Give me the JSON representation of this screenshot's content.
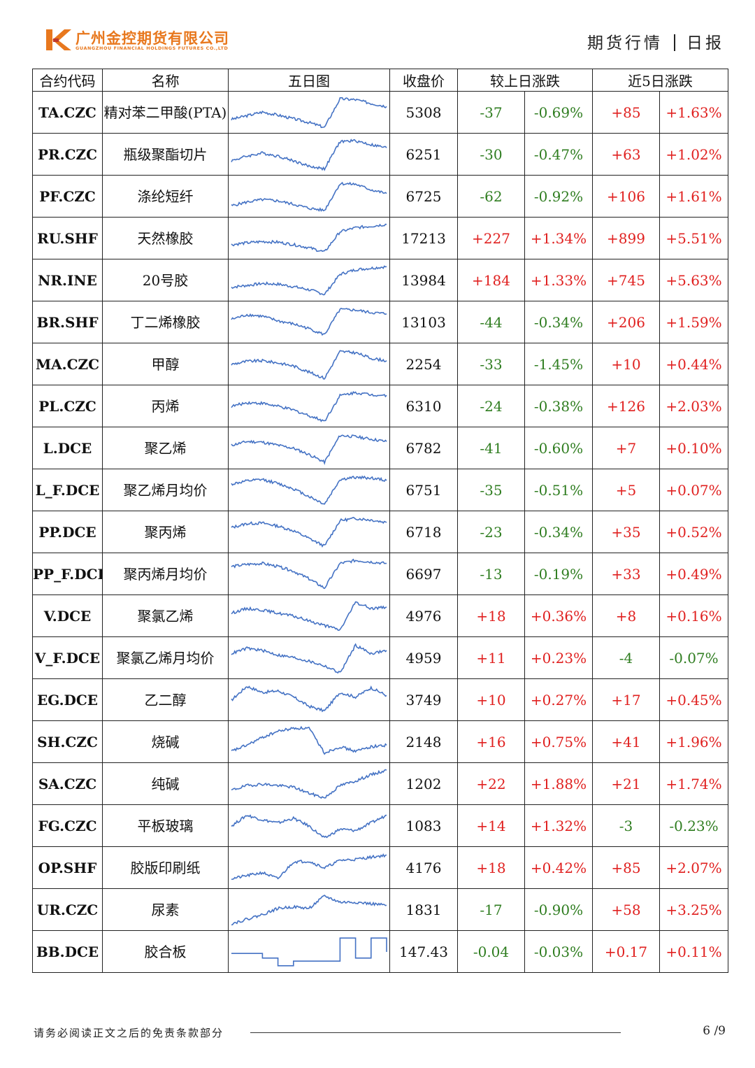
{
  "header": {
    "company_cn": "广州金控期货有限公司",
    "company_en": "GUANGZHOU FINANCIAL HOLDINGS FUTURES CO.,LTD",
    "logo_letter": "K",
    "report_left": "期货行情",
    "report_right": "日报",
    "brand_color": "#e8781e"
  },
  "table": {
    "headers": {
      "code": "合约代码",
      "name": "名称",
      "chart": "五日图",
      "close": "收盘价",
      "day_change": "较上日涨跌",
      "five_day_change": "近5日涨跌"
    },
    "rows": [
      {
        "code": "TA.CZC",
        "name": "精对苯二甲酸(PTA)",
        "close": "5308",
        "chg": "-37",
        "pct": "-0.69%",
        "chg5": "+85",
        "pct5": "+1.63%"
      },
      {
        "code": "PR.CZC",
        "name": "瓶级聚酯切片",
        "close": "6251",
        "chg": "-30",
        "pct": "-0.47%",
        "chg5": "+63",
        "pct5": "+1.02%"
      },
      {
        "code": "PF.CZC",
        "name": "涤纶短纤",
        "close": "6725",
        "chg": "-62",
        "pct": "-0.92%",
        "chg5": "+106",
        "pct5": "+1.61%"
      },
      {
        "code": "RU.SHF",
        "name": "天然橡胶",
        "close": "17213",
        "chg": "+227",
        "pct": "+1.34%",
        "chg5": "+899",
        "pct5": "+5.51%"
      },
      {
        "code": "NR.INE",
        "name": "20号胶",
        "close": "13984",
        "chg": "+184",
        "pct": "+1.33%",
        "chg5": "+745",
        "pct5": "+5.63%"
      },
      {
        "code": "BR.SHF",
        "name": "丁二烯橡胶",
        "close": "13103",
        "chg": "-44",
        "pct": "-0.34%",
        "chg5": "+206",
        "pct5": "+1.59%"
      },
      {
        "code": "MA.CZC",
        "name": "甲醇",
        "close": "2254",
        "chg": "-33",
        "pct": "-1.45%",
        "chg5": "+10",
        "pct5": "+0.44%"
      },
      {
        "code": "PL.CZC",
        "name": "丙烯",
        "close": "6310",
        "chg": "-24",
        "pct": "-0.38%",
        "chg5": "+126",
        "pct5": "+2.03%"
      },
      {
        "code": "L.DCE",
        "name": "聚乙烯",
        "close": "6782",
        "chg": "-41",
        "pct": "-0.60%",
        "chg5": "+7",
        "pct5": "+0.10%"
      },
      {
        "code": "L_F.DCE",
        "name": "聚乙烯月均价",
        "close": "6751",
        "chg": "-35",
        "pct": "-0.51%",
        "chg5": "+5",
        "pct5": "+0.07%"
      },
      {
        "code": "PP.DCE",
        "name": "聚丙烯",
        "close": "6718",
        "chg": "-23",
        "pct": "-0.34%",
        "chg5": "+35",
        "pct5": "+0.52%"
      },
      {
        "code": "PP_F.DCE",
        "name": "聚丙烯月均价",
        "close": "6697",
        "chg": "-13",
        "pct": "-0.19%",
        "chg5": "+33",
        "pct5": "+0.49%"
      },
      {
        "code": "V.DCE",
        "name": "聚氯乙烯",
        "close": "4976",
        "chg": "+18",
        "pct": "+0.36%",
        "chg5": "+8",
        "pct5": "+0.16%"
      },
      {
        "code": "V_F.DCE",
        "name": "聚氯乙烯月均价",
        "close": "4959",
        "chg": "+11",
        "pct": "+0.23%",
        "chg5": "-4",
        "pct5": "-0.07%"
      },
      {
        "code": "EG.DCE",
        "name": "乙二醇",
        "close": "3749",
        "chg": "+10",
        "pct": "+0.27%",
        "chg5": "+17",
        "pct5": "+0.45%"
      },
      {
        "code": "SH.CZC",
        "name": "烧碱",
        "close": "2148",
        "chg": "+16",
        "pct": "+0.75%",
        "chg5": "+41",
        "pct5": "+1.96%"
      },
      {
        "code": "SA.CZC",
        "name": "纯碱",
        "close": "1202",
        "chg": "+22",
        "pct": "+1.88%",
        "chg5": "+21",
        "pct5": "+1.74%"
      },
      {
        "code": "FG.CZC",
        "name": "平板玻璃",
        "close": "1083",
        "chg": "+14",
        "pct": "+1.32%",
        "chg5": "-3",
        "pct5": "-0.23%"
      },
      {
        "code": "OP.SHF",
        "name": "胶版印刷纸",
        "close": "4176",
        "chg": "+18",
        "pct": "+0.42%",
        "chg5": "+85",
        "pct5": "+2.07%"
      },
      {
        "code": "UR.CZC",
        "name": "尿素",
        "close": "1831",
        "chg": "-17",
        "pct": "-0.90%",
        "chg5": "+58",
        "pct5": "+3.25%"
      },
      {
        "code": "BB.DCE",
        "name": "胶合板",
        "close": "147.43",
        "chg": "-0.04",
        "pct": "-0.03%",
        "chg5": "+0.17",
        "pct5": "+0.11%"
      }
    ]
  },
  "sparklines": [
    [
      0.28,
      0.4,
      0.52,
      0.42,
      0.3,
      0.18,
      0.02,
      0.95,
      0.92,
      0.8,
      0.7
    ],
    [
      0.3,
      0.45,
      0.55,
      0.45,
      0.3,
      0.12,
      0.04,
      0.92,
      0.95,
      0.82,
      0.72
    ],
    [
      0.2,
      0.32,
      0.4,
      0.36,
      0.25,
      0.12,
      0.05,
      0.92,
      0.9,
      0.72,
      0.6
    ],
    [
      0.3,
      0.36,
      0.4,
      0.38,
      0.3,
      0.2,
      0.06,
      0.72,
      0.85,
      0.9,
      0.96
    ],
    [
      0.28,
      0.34,
      0.4,
      0.38,
      0.3,
      0.2,
      0.05,
      0.7,
      0.85,
      0.9,
      0.95
    ],
    [
      0.6,
      0.75,
      0.7,
      0.55,
      0.45,
      0.3,
      0.1,
      0.92,
      0.9,
      0.82,
      0.78
    ],
    [
      0.5,
      0.6,
      0.62,
      0.55,
      0.45,
      0.25,
      0.05,
      0.92,
      0.88,
      0.7,
      0.62
    ],
    [
      0.5,
      0.62,
      0.6,
      0.5,
      0.38,
      0.2,
      0.02,
      0.85,
      0.95,
      0.88,
      0.86
    ],
    [
      0.6,
      0.72,
      0.7,
      0.6,
      0.5,
      0.3,
      0.05,
      0.92,
      0.88,
      0.8,
      0.72
    ],
    [
      0.7,
      0.8,
      0.85,
      0.72,
      0.55,
      0.3,
      0.05,
      0.85,
      0.92,
      0.9,
      0.82
    ],
    [
      0.65,
      0.78,
      0.8,
      0.7,
      0.55,
      0.3,
      0.05,
      0.88,
      0.95,
      0.9,
      0.82
    ],
    [
      0.75,
      0.82,
      0.85,
      0.75,
      0.6,
      0.35,
      0.05,
      0.85,
      0.95,
      0.9,
      0.85
    ],
    [
      0.6,
      0.75,
      0.7,
      0.6,
      0.5,
      0.35,
      0.2,
      0.05,
      0.95,
      0.75,
      0.8
    ],
    [
      0.65,
      0.82,
      0.75,
      0.6,
      0.52,
      0.4,
      0.25,
      0.02,
      0.92,
      0.65,
      0.75
    ],
    [
      0.5,
      0.95,
      0.75,
      0.8,
      0.6,
      0.3,
      0.15,
      0.75,
      0.6,
      0.9,
      0.65
    ],
    [
      0.2,
      0.4,
      0.65,
      0.85,
      0.95,
      0.95,
      0.15,
      0.35,
      0.2,
      0.35,
      0.4
    ],
    [
      0.3,
      0.45,
      0.5,
      0.45,
      0.4,
      0.2,
      0.05,
      0.45,
      0.6,
      0.8,
      0.95
    ],
    [
      0.5,
      0.85,
      0.7,
      0.6,
      0.75,
      0.5,
      0.1,
      0.4,
      0.35,
      0.6,
      0.85
    ],
    [
      0.15,
      0.25,
      0.35,
      0.15,
      0.7,
      0.72,
      0.5,
      0.75,
      0.78,
      0.85,
      0.92
    ],
    [
      0.05,
      0.2,
      0.35,
      0.55,
      0.6,
      0.55,
      0.95,
      0.75,
      0.75,
      0.7,
      0.65
    ],
    [
      0.45,
      0.45,
      0.3,
      0.05,
      0.2,
      0.2,
      0.2,
      0.95,
      0.3,
      0.95,
      0.5
    ]
  ],
  "footer": {
    "disclaimer": "请务必阅读正文之后的免责条款部分",
    "page": "6 /9"
  },
  "colors": {
    "up": "#e0201f",
    "down": "#2f7d20",
    "line": "#4472c4"
  }
}
